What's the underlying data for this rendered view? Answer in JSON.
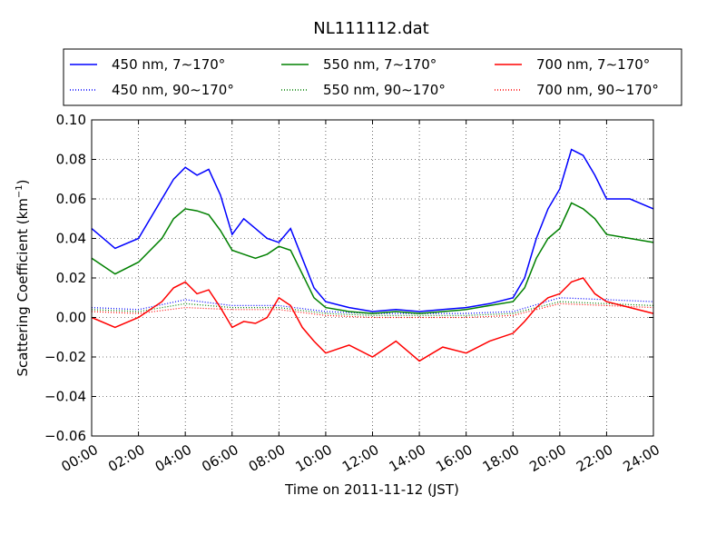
{
  "chart_data": {
    "type": "line",
    "title": "NL111112.dat",
    "xlabel": "Time on 2011-11-12 (JST)",
    "ylabel_main": "Scattering Coefficient (km",
    "ylabel_sup": "−1",
    "ylabel_close": ")",
    "xlim": [
      "00:00",
      "24:00"
    ],
    "ylim": [
      -0.06,
      0.1
    ],
    "grid": true,
    "legend_position": "top",
    "x_ticks": [
      "00:00",
      "02:00",
      "04:00",
      "06:00",
      "08:00",
      "10:00",
      "12:00",
      "14:00",
      "16:00",
      "18:00",
      "20:00",
      "22:00",
      "24:00"
    ],
    "y_ticks": [
      "−0.06",
      "−0.04",
      "−0.02",
      "0.00",
      "0.02",
      "0.04",
      "0.06",
      "0.08",
      "0.10"
    ],
    "series": [
      {
        "name": "450 nm, 7∼170°",
        "color": "#0000ff",
        "style": "solid",
        "x": [
          "00:00",
          "01:00",
          "02:00",
          "03:00",
          "03:30",
          "04:00",
          "04:30",
          "05:00",
          "05:30",
          "06:00",
          "06:30",
          "07:00",
          "07:30",
          "08:00",
          "08:30",
          "09:00",
          "09:30",
          "10:00",
          "11:00",
          "12:00",
          "13:00",
          "14:00",
          "15:00",
          "16:00",
          "17:00",
          "18:00",
          "18:30",
          "19:00",
          "19:30",
          "20:00",
          "20:30",
          "21:00",
          "21:30",
          "22:00",
          "23:00",
          "24:00"
        ],
        "y": [
          0.045,
          0.035,
          0.04,
          0.06,
          0.07,
          0.076,
          0.072,
          0.075,
          0.062,
          0.042,
          0.05,
          0.045,
          0.04,
          0.038,
          0.045,
          0.03,
          0.015,
          0.008,
          0.005,
          0.003,
          0.004,
          0.003,
          0.004,
          0.005,
          0.007,
          0.01,
          0.02,
          0.04,
          0.055,
          0.065,
          0.085,
          0.082,
          0.072,
          0.06,
          0.06,
          0.055
        ]
      },
      {
        "name": "550 nm, 7∼170°",
        "color": "#008000",
        "style": "solid",
        "x": [
          "00:00",
          "01:00",
          "02:00",
          "03:00",
          "03:30",
          "04:00",
          "04:30",
          "05:00",
          "05:30",
          "06:00",
          "06:30",
          "07:00",
          "07:30",
          "08:00",
          "08:30",
          "09:00",
          "09:30",
          "10:00",
          "11:00",
          "12:00",
          "13:00",
          "14:00",
          "15:00",
          "16:00",
          "17:00",
          "18:00",
          "18:30",
          "19:00",
          "19:30",
          "20:00",
          "20:30",
          "21:00",
          "21:30",
          "22:00",
          "23:00",
          "24:00"
        ],
        "y": [
          0.03,
          0.022,
          0.028,
          0.04,
          0.05,
          0.055,
          0.054,
          0.052,
          0.044,
          0.034,
          0.032,
          0.03,
          0.032,
          0.036,
          0.034,
          0.022,
          0.01,
          0.005,
          0.003,
          0.002,
          0.003,
          0.002,
          0.003,
          0.004,
          0.006,
          0.008,
          0.015,
          0.03,
          0.04,
          0.045,
          0.058,
          0.055,
          0.05,
          0.042,
          0.04,
          0.038
        ]
      },
      {
        "name": "700 nm, 7∼170°",
        "color": "#ff0000",
        "style": "solid",
        "x": [
          "00:00",
          "01:00",
          "02:00",
          "03:00",
          "03:30",
          "04:00",
          "04:30",
          "05:00",
          "05:30",
          "06:00",
          "06:30",
          "07:00",
          "07:30",
          "08:00",
          "08:30",
          "09:00",
          "09:30",
          "10:00",
          "11:00",
          "12:00",
          "13:00",
          "14:00",
          "15:00",
          "16:00",
          "17:00",
          "18:00",
          "18:30",
          "19:00",
          "19:30",
          "20:00",
          "20:30",
          "21:00",
          "21:30",
          "22:00",
          "23:00",
          "24:00"
        ],
        "y": [
          0.0,
          -0.005,
          0.0,
          0.008,
          0.015,
          0.018,
          0.012,
          0.014,
          0.005,
          -0.005,
          -0.002,
          -0.003,
          0.0,
          0.01,
          0.006,
          -0.005,
          -0.012,
          -0.018,
          -0.014,
          -0.02,
          -0.012,
          -0.022,
          -0.015,
          -0.018,
          -0.012,
          -0.008,
          -0.002,
          0.005,
          0.01,
          0.012,
          0.018,
          0.02,
          0.012,
          0.008,
          0.005,
          0.002
        ]
      },
      {
        "name": "450 nm, 90∼170°",
        "color": "#0000ff",
        "style": "dotted",
        "x": [
          "00:00",
          "02:00",
          "04:00",
          "06:00",
          "08:00",
          "10:00",
          "12:00",
          "14:00",
          "16:00",
          "18:00",
          "20:00",
          "22:00",
          "24:00"
        ],
        "y": [
          0.005,
          0.004,
          0.009,
          0.006,
          0.006,
          0.003,
          0.002,
          0.002,
          0.002,
          0.003,
          0.01,
          0.009,
          0.008
        ]
      },
      {
        "name": "550 nm, 90∼170°",
        "color": "#008000",
        "style": "dotted",
        "x": [
          "00:00",
          "02:00",
          "04:00",
          "06:00",
          "08:00",
          "10:00",
          "12:00",
          "14:00",
          "16:00",
          "18:00",
          "20:00",
          "22:00",
          "24:00"
        ],
        "y": [
          0.004,
          0.003,
          0.007,
          0.005,
          0.005,
          0.002,
          0.001,
          0.001,
          0.001,
          0.002,
          0.008,
          0.007,
          0.006
        ]
      },
      {
        "name": "700 nm, 90∼170°",
        "color": "#ff0000",
        "style": "dotted",
        "x": [
          "00:00",
          "02:00",
          "04:00",
          "06:00",
          "08:00",
          "10:00",
          "12:00",
          "14:00",
          "16:00",
          "18:00",
          "20:00",
          "22:00",
          "24:00"
        ],
        "y": [
          0.003,
          0.002,
          0.005,
          0.004,
          0.004,
          0.001,
          0.0,
          0.0,
          0.0,
          0.001,
          0.007,
          0.006,
          0.005
        ]
      }
    ]
  }
}
